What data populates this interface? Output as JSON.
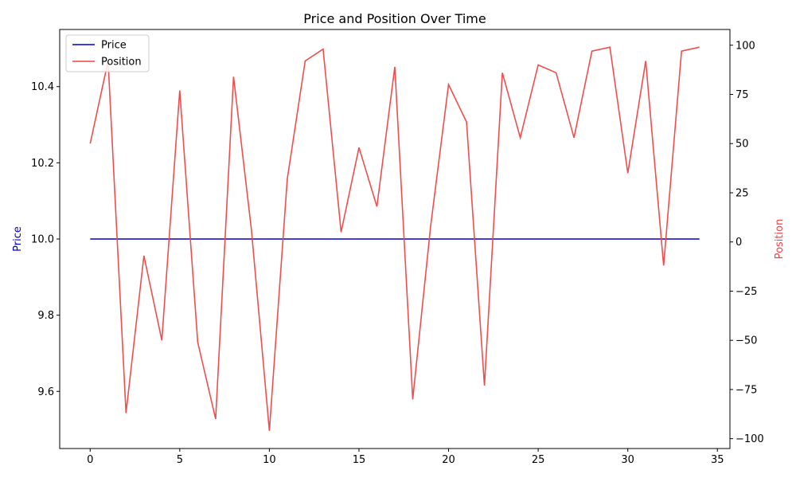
{
  "chart_data": {
    "type": "line",
    "title": "Price and Position Over Time",
    "xlabel": "",
    "ylabel_left": "Price",
    "ylabel_right": "Position",
    "xlim": [
      -1.7,
      35.7
    ],
    "ylim_left": [
      9.45,
      10.55
    ],
    "ylim_right": [
      -105,
      108
    ],
    "x_ticks": [
      0,
      5,
      10,
      15,
      20,
      25,
      30,
      35
    ],
    "y_left_ticks": [
      "9.6",
      "9.8",
      "10.0",
      "10.2",
      "10.4"
    ],
    "y_left_tick_values": [
      9.6,
      9.8,
      10.0,
      10.2,
      10.4
    ],
    "y_right_ticks": [
      "−100",
      "−75",
      "−50",
      "−25",
      "0",
      "25",
      "50",
      "75",
      "100"
    ],
    "y_right_tick_values": [
      -100,
      -75,
      -50,
      -25,
      0,
      25,
      50,
      75,
      100
    ],
    "grid": false,
    "legend_position": "upper-left",
    "series": [
      {
        "name": "Price",
        "axis": "left",
        "color": "#0000cc",
        "x": [
          0,
          34
        ],
        "values": [
          10.0,
          10.0
        ]
      },
      {
        "name": "Position",
        "axis": "right",
        "color": "#ee4444",
        "x": [
          0,
          1,
          2,
          3,
          4,
          5,
          6,
          7,
          8,
          9,
          10,
          11,
          12,
          13,
          14,
          15,
          16,
          17,
          18,
          19,
          20,
          21,
          22,
          23,
          24,
          25,
          26,
          27,
          28,
          29,
          30,
          31,
          32,
          33,
          34
        ],
        "values": [
          50,
          92,
          -87,
          -7,
          -50,
          77,
          -51,
          -90,
          84,
          6,
          -96,
          32,
          92,
          98,
          5,
          48,
          18,
          89,
          -80,
          8,
          80,
          61,
          -73,
          86,
          53,
          90,
          86,
          53,
          97,
          99,
          35,
          92,
          -12,
          97,
          99
        ]
      }
    ]
  }
}
